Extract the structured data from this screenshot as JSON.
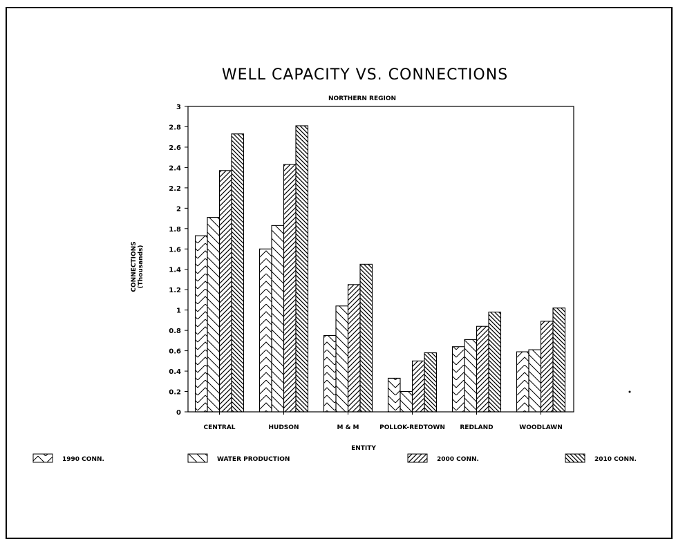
{
  "chart_data": {
    "type": "bar",
    "title": "WELL CAPACITY VS. CONNECTIONS",
    "subtitle": "NORTHERN REGION",
    "xlabel": "ENTITY",
    "ylabel": "CONNECTIONS",
    "ylabel_sub": "(Thousands)",
    "ylim": [
      0,
      3
    ],
    "yticks": [
      "0",
      "0.2",
      "0.4",
      "0.6",
      "0.8",
      "1",
      "1.2",
      "1.4",
      "1.6",
      "1.8",
      "2",
      "2.2",
      "2.4",
      "2.6",
      "2.8",
      "3"
    ],
    "categories": [
      "CENTRAL",
      "HUDSON",
      "M & M",
      "POLLOK-REDTOWN",
      "REDLAND",
      "WOODLAWN"
    ],
    "series": [
      {
        "name": "1990 CONN.",
        "values": [
          1.73,
          1.6,
          0.75,
          0.33,
          0.64,
          0.59
        ],
        "pattern": "chevron"
      },
      {
        "name": "WATER PRODUCTION",
        "values": [
          1.91,
          1.83,
          1.04,
          0.2,
          0.71,
          0.61
        ],
        "pattern": "backslash"
      },
      {
        "name": "2000 CONN.",
        "values": [
          2.37,
          2.43,
          1.25,
          0.5,
          0.84,
          0.89
        ],
        "pattern": "slash"
      },
      {
        "name": "2010 CONN.",
        "values": [
          2.73,
          2.81,
          1.45,
          0.58,
          0.98,
          1.02
        ],
        "pattern": "dense-backslash"
      }
    ],
    "grid": false,
    "legend": "bottom"
  }
}
